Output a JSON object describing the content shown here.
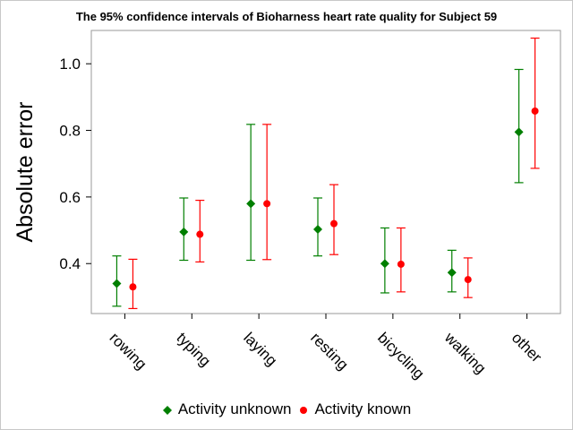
{
  "chart_data": {
    "type": "scatter",
    "subtype": "error-bar",
    "title": "The 95% confidence intervals of Bioharness heart rate quality for Subject 59",
    "xlabel": "",
    "ylabel": "Absolute error",
    "categories": [
      "rowing",
      "typing",
      "laying",
      "resting",
      "bicycling",
      "walking",
      "other"
    ],
    "ylim": [
      0.25,
      1.1
    ],
    "yticks": [
      0.4,
      0.6,
      0.8,
      1.0
    ],
    "ytick_labels": [
      "0.4",
      "0.6",
      "0.8",
      "1.0"
    ],
    "grid": false,
    "legend_position": "bottom",
    "series": [
      {
        "name": "Activity unknown",
        "color": "#007f00",
        "marker": "diamond",
        "values": [
          0.34,
          0.495,
          0.58,
          0.503,
          0.4,
          0.373,
          0.795
        ],
        "lower": [
          0.272,
          0.41,
          0.41,
          0.423,
          0.312,
          0.315,
          0.643
        ],
        "upper": [
          0.423,
          0.597,
          0.818,
          0.597,
          0.507,
          0.44,
          0.983
        ]
      },
      {
        "name": "Activity known",
        "color": "#ff0000",
        "marker": "circle",
        "values": [
          0.33,
          0.488,
          0.58,
          0.52,
          0.398,
          0.352,
          0.858
        ],
        "lower": [
          0.265,
          0.405,
          0.412,
          0.427,
          0.315,
          0.298,
          0.686
        ],
        "upper": [
          0.413,
          0.59,
          0.818,
          0.637,
          0.507,
          0.417,
          1.077
        ]
      }
    ]
  }
}
